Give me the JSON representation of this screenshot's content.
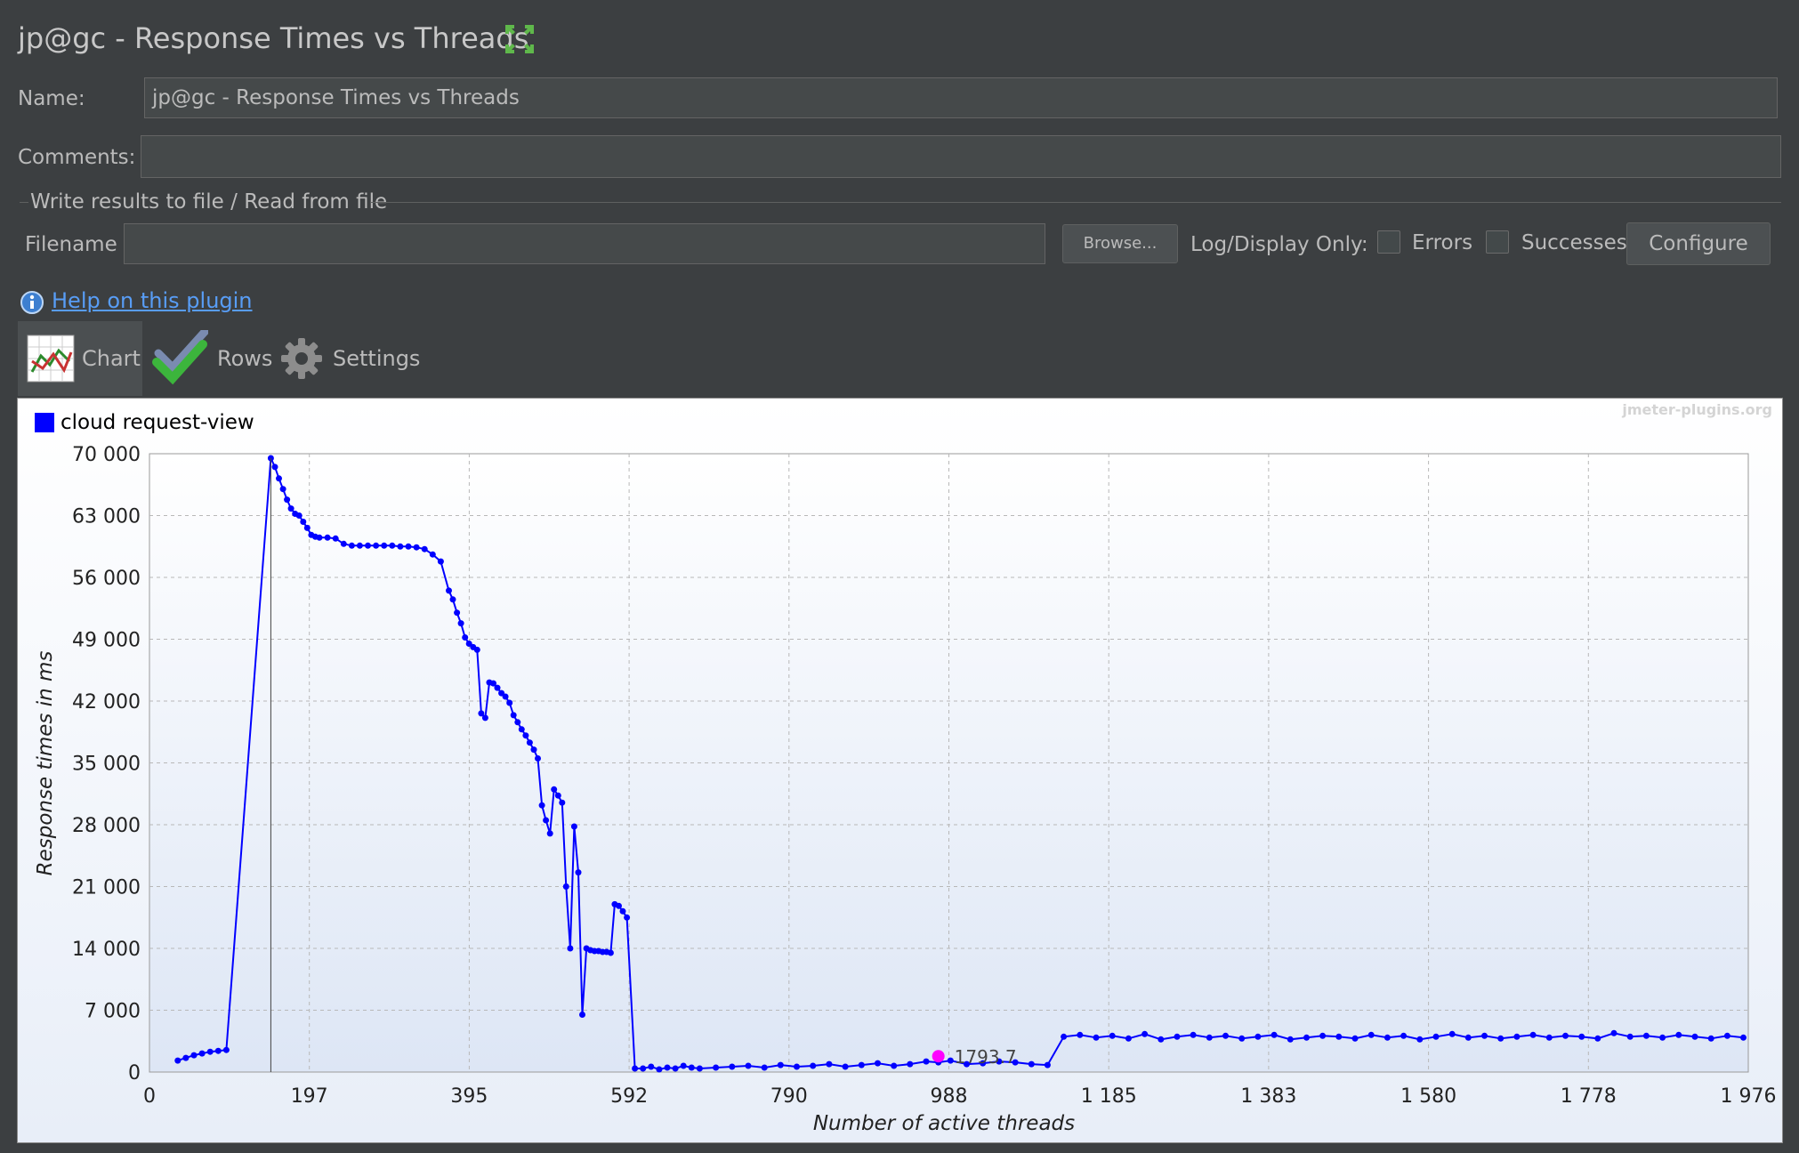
{
  "window": {
    "title": "jp@gc - Response Times vs Threads",
    "expand_icon": "expand-arrows-icon"
  },
  "form": {
    "name_label": "Name:",
    "name_value": "jp@gc - Response Times vs Threads",
    "comments_label": "Comments:",
    "comments_value": "",
    "file_group_label": "Write results to file / Read from file",
    "filename_label": "Filename",
    "filename_value": "",
    "browse_label": "Browse...",
    "log_only_label": "Log/Display Only:",
    "errors_label": "Errors",
    "errors_checked": false,
    "successes_label": "Successes",
    "successes_checked": false,
    "configure_label": "Configure"
  },
  "help": {
    "icon": "info-icon",
    "link_label": "Help on this plugin"
  },
  "tabs": [
    {
      "label": "Chart",
      "icon": "chart-icon",
      "active": true
    },
    {
      "label": "Rows",
      "icon": "checkmark-icon",
      "active": false
    },
    {
      "label": "Settings",
      "icon": "gear-icon",
      "active": false
    }
  ],
  "chart": {
    "watermark": "jmeter-plugins.org",
    "series_color": "#0000ff",
    "highlight_color": "#ff00ff",
    "hover_label": "1793.7"
  },
  "chart_data": {
    "type": "line",
    "title": "",
    "xlabel": "Number of active threads",
    "ylabel": "Response times in ms",
    "xlim": [
      0,
      1976
    ],
    "ylim": [
      0,
      70000
    ],
    "x_ticks": [
      "0",
      "197",
      "395",
      "592",
      "790",
      "988",
      "1 185",
      "1 383",
      "1 580",
      "1 778",
      "1 976"
    ],
    "y_ticks": [
      "0",
      "7 000",
      "14 000",
      "21 000",
      "28 000",
      "35 000",
      "42 000",
      "49 000",
      "56 000",
      "63 000",
      "70 000"
    ],
    "grid": true,
    "legend_position": "top-left",
    "series": [
      {
        "name": "cloud request-view",
        "x": [
          35,
          45,
          55,
          65,
          75,
          85,
          95,
          150,
          155,
          160,
          165,
          170,
          175,
          180,
          185,
          190,
          195,
          200,
          205,
          210,
          220,
          230,
          240,
          250,
          260,
          270,
          280,
          290,
          300,
          310,
          320,
          330,
          340,
          350,
          360,
          370,
          375,
          380,
          385,
          390,
          395,
          400,
          405,
          410,
          415,
          420,
          425,
          430,
          435,
          440,
          445,
          450,
          455,
          460,
          465,
          470,
          475,
          480,
          485,
          490,
          495,
          500,
          505,
          510,
          515,
          520,
          525,
          530,
          535,
          540,
          545,
          550,
          555,
          560,
          565,
          570,
          575,
          580,
          585,
          590,
          600,
          610,
          620,
          630,
          640,
          650,
          660,
          670,
          680,
          700,
          720,
          740,
          760,
          780,
          800,
          820,
          840,
          860,
          880,
          900,
          920,
          940,
          960,
          975,
          990,
          1010,
          1030,
          1050,
          1070,
          1090,
          1110,
          1130,
          1150,
          1170,
          1190,
          1210,
          1230,
          1250,
          1270,
          1290,
          1310,
          1330,
          1350,
          1370,
          1390,
          1410,
          1430,
          1450,
          1470,
          1490,
          1510,
          1530,
          1550,
          1570,
          1590,
          1610,
          1630,
          1650,
          1670,
          1690,
          1710,
          1730,
          1750,
          1770,
          1790,
          1810,
          1830,
          1850,
          1870,
          1890,
          1910,
          1930,
          1950,
          1970
        ],
        "y": [
          1300,
          1600,
          1900,
          2100,
          2300,
          2400,
          2500,
          69500,
          68500,
          67200,
          66000,
          64800,
          63800,
          63200,
          63000,
          62300,
          61600,
          60800,
          60600,
          60500,
          60500,
          60400,
          59800,
          59600,
          59600,
          59600,
          59600,
          59600,
          59600,
          59500,
          59500,
          59400,
          59200,
          58600,
          57800,
          54500,
          53500,
          52000,
          50800,
          49200,
          48500,
          48100,
          47800,
          40600,
          40100,
          44100,
          44000,
          43500,
          42900,
          42500,
          41800,
          40400,
          39600,
          38800,
          38100,
          37300,
          36500,
          35500,
          30200,
          28500,
          27000,
          32000,
          31300,
          30500,
          21000,
          14000,
          27800,
          22600,
          6500,
          14000,
          13800,
          13700,
          13700,
          13600,
          13600,
          13500,
          19000,
          18800,
          18200,
          17500,
          400,
          400,
          600,
          300,
          500,
          400,
          700,
          500,
          400,
          500,
          600,
          700,
          500,
          800,
          600,
          700,
          900,
          600,
          800,
          1000,
          700,
          900,
          1200,
          1100,
          1300,
          900,
          1000,
          1200,
          1100,
          900,
          800,
          4000,
          4200,
          3900,
          4100,
          3800,
          4300,
          3700,
          4000,
          4200,
          3900,
          4100,
          3800,
          4000,
          4200,
          3700,
          3900,
          4100,
          4000,
          3800,
          4200,
          3900,
          4100,
          3700,
          4000,
          4300,
          3900,
          4100,
          3800,
          4000,
          4200,
          3900,
          4100,
          4000,
          3800,
          4400,
          4000,
          4100,
          3900,
          4200,
          4000,
          3800,
          4100,
          3900
        ]
      }
    ]
  }
}
